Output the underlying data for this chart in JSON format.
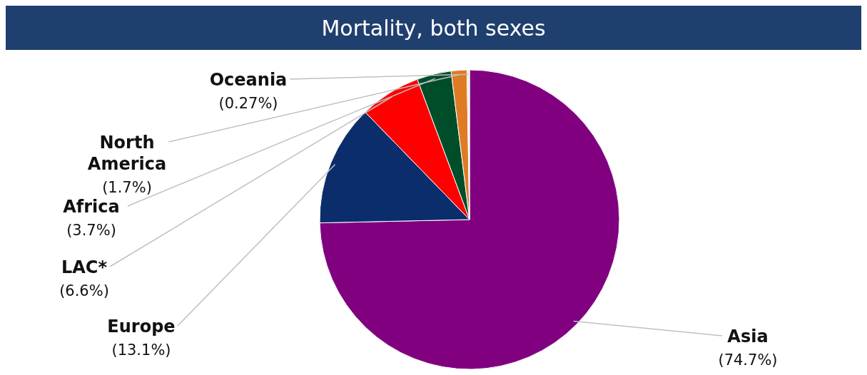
{
  "chart_data": {
    "type": "pie",
    "title": "Mortality, both sexes",
    "categories": [
      "Asia",
      "Europe",
      "LAC*",
      "Africa",
      "North America",
      "Oceania"
    ],
    "values": [
      74.7,
      13.1,
      6.6,
      3.7,
      1.7,
      0.27
    ],
    "value_labels": [
      "(74.7%)",
      "(13.1%)",
      "(6.6%)",
      "(3.7%)",
      "(1.7%)",
      "(0.27%)"
    ],
    "colors": [
      "#800080",
      "#0c2d6b",
      "#ff0000",
      "#004d2a",
      "#e07b25",
      "#ececec"
    ]
  }
}
